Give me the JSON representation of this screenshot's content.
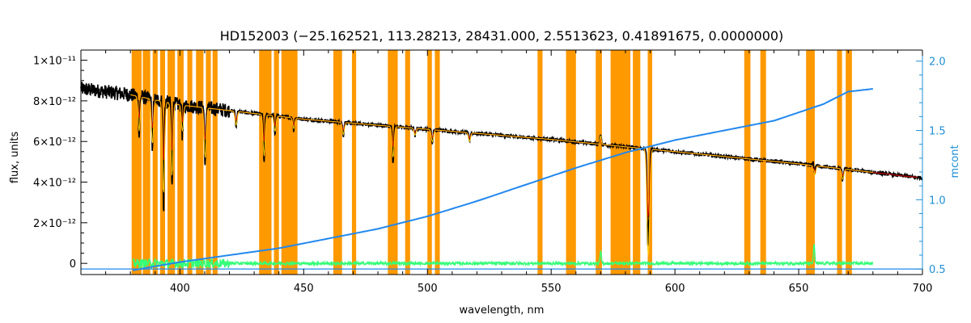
{
  "chart_data": {
    "type": "line",
    "title": "HD152003    (−25.162521, 113.28213, 28431.000, 2.5513623, 0.41891675, 0.0000000)",
    "xlabel": "wavelength, nm",
    "ylabel": "flux, units",
    "y2label": "mcont",
    "xlim": [
      360,
      700
    ],
    "ylim": [
      -5.5e-13,
      1.05e-11
    ],
    "y2lim": [
      0.46,
      2.08
    ],
    "x_ticks": [
      400,
      450,
      500,
      550,
      600,
      650,
      700
    ],
    "x_tick_labels": [
      "400",
      "450",
      "500",
      "550",
      "600",
      "650",
      "700"
    ],
    "y_ticks": [
      0,
      2e-12,
      4e-12,
      6e-12,
      8e-12,
      1e-11
    ],
    "y_tick_labels": [
      "0",
      "2×10⁻¹²",
      "4×10⁻¹²",
      "6×10⁻¹²",
      "8×10⁻¹²",
      "1×10⁻¹¹"
    ],
    "y2_ticks": [
      0.5,
      1.0,
      1.5,
      2.0
    ],
    "y2_tick_labels": [
      "0.5",
      "1.0",
      "1.5",
      "2.0"
    ],
    "masked_regions": [
      [
        380.5,
        384.5
      ],
      [
        385,
        388
      ],
      [
        389,
        391
      ],
      [
        392,
        394
      ],
      [
        395,
        398
      ],
      [
        399,
        401.5
      ],
      [
        403,
        405
      ],
      [
        406.5,
        409.5
      ],
      [
        410.5,
        412.5
      ],
      [
        413.2,
        415.2
      ],
      [
        432,
        437
      ],
      [
        438,
        440
      ],
      [
        441,
        447.5
      ],
      [
        462,
        465.5
      ],
      [
        469.5,
        471.2
      ],
      [
        484,
        488
      ],
      [
        491,
        493
      ],
      [
        500,
        501.8
      ],
      [
        503,
        505
      ],
      [
        544.5,
        546.5
      ],
      [
        556,
        560
      ],
      [
        568,
        570.5
      ],
      [
        574,
        582
      ],
      [
        583,
        586
      ],
      [
        589,
        590.8
      ],
      [
        628,
        630.5
      ],
      [
        634.5,
        636.8
      ],
      [
        653,
        656.5
      ],
      [
        665.5,
        667.5
      ],
      [
        669,
        671.5
      ]
    ],
    "continuum_flux": {
      "x": [
        360,
        380,
        400,
        450,
        500,
        550,
        600,
        650,
        700
      ],
      "y": [
        8.6e-12,
        8.3e-12,
        7.8e-12,
        7.1e-12,
        6.6e-12,
        6.1e-12,
        5.5e-12,
        4.9e-12,
        4.2e-12
      ]
    },
    "absorption_lines": [
      {
        "x": 383.5,
        "depth": 2e-12
      },
      {
        "x": 388.9,
        "depth": 2.6e-12
      },
      {
        "x": 393.4,
        "depth": 5.4e-12
      },
      {
        "x": 396.8,
        "depth": 4.2e-12
      },
      {
        "x": 401.0,
        "depth": 1.5e-12
      },
      {
        "x": 410.2,
        "depth": 2.9e-12
      },
      {
        "x": 422.7,
        "depth": 8e-13
      },
      {
        "x": 434.0,
        "depth": 2.4e-12
      },
      {
        "x": 438.4,
        "depth": 9e-13
      },
      {
        "x": 446.0,
        "depth": 6e-13
      },
      {
        "x": 466.0,
        "depth": 7e-13
      },
      {
        "x": 486.1,
        "depth": 1.8e-12
      },
      {
        "x": 495.0,
        "depth": 4e-13
      },
      {
        "x": 502.0,
        "depth": 7e-13
      },
      {
        "x": 517.0,
        "depth": 5e-13
      },
      {
        "x": 589.0,
        "depth": 4.6e-12
      },
      {
        "x": 589.6,
        "depth": 3.2e-12
      },
      {
        "x": 656.3,
        "depth": 1.1e-12
      },
      {
        "x": 667.8,
        "depth": 6e-13
      }
    ],
    "emission_spikes": [
      {
        "x": 570.0,
        "height": 5e-13
      },
      {
        "x": 656.2,
        "height": 8e-13
      }
    ],
    "mcont": {
      "x": [
        381,
        390,
        400,
        420,
        440,
        460,
        480,
        500,
        520,
        540,
        560,
        580,
        600,
        620,
        640,
        660,
        670,
        680
      ],
      "y": [
        0.49,
        0.52,
        0.55,
        0.6,
        0.65,
        0.72,
        0.79,
        0.88,
        0.99,
        1.11,
        1.23,
        1.34,
        1.43,
        1.5,
        1.57,
        1.69,
        1.78,
        1.8
      ]
    },
    "mcont_baseline": [
      0.5,
      0.5
    ],
    "residual_range": [
      381,
      680
    ],
    "series": [
      {
        "color": "#000000"
      },
      {
        "color": "#cc0000"
      },
      {
        "color": "#ffcc00"
      },
      {
        "color": "#2288ee"
      },
      {
        "color": "#33ff77"
      }
    ],
    "mask_color": "#ff9900"
  }
}
